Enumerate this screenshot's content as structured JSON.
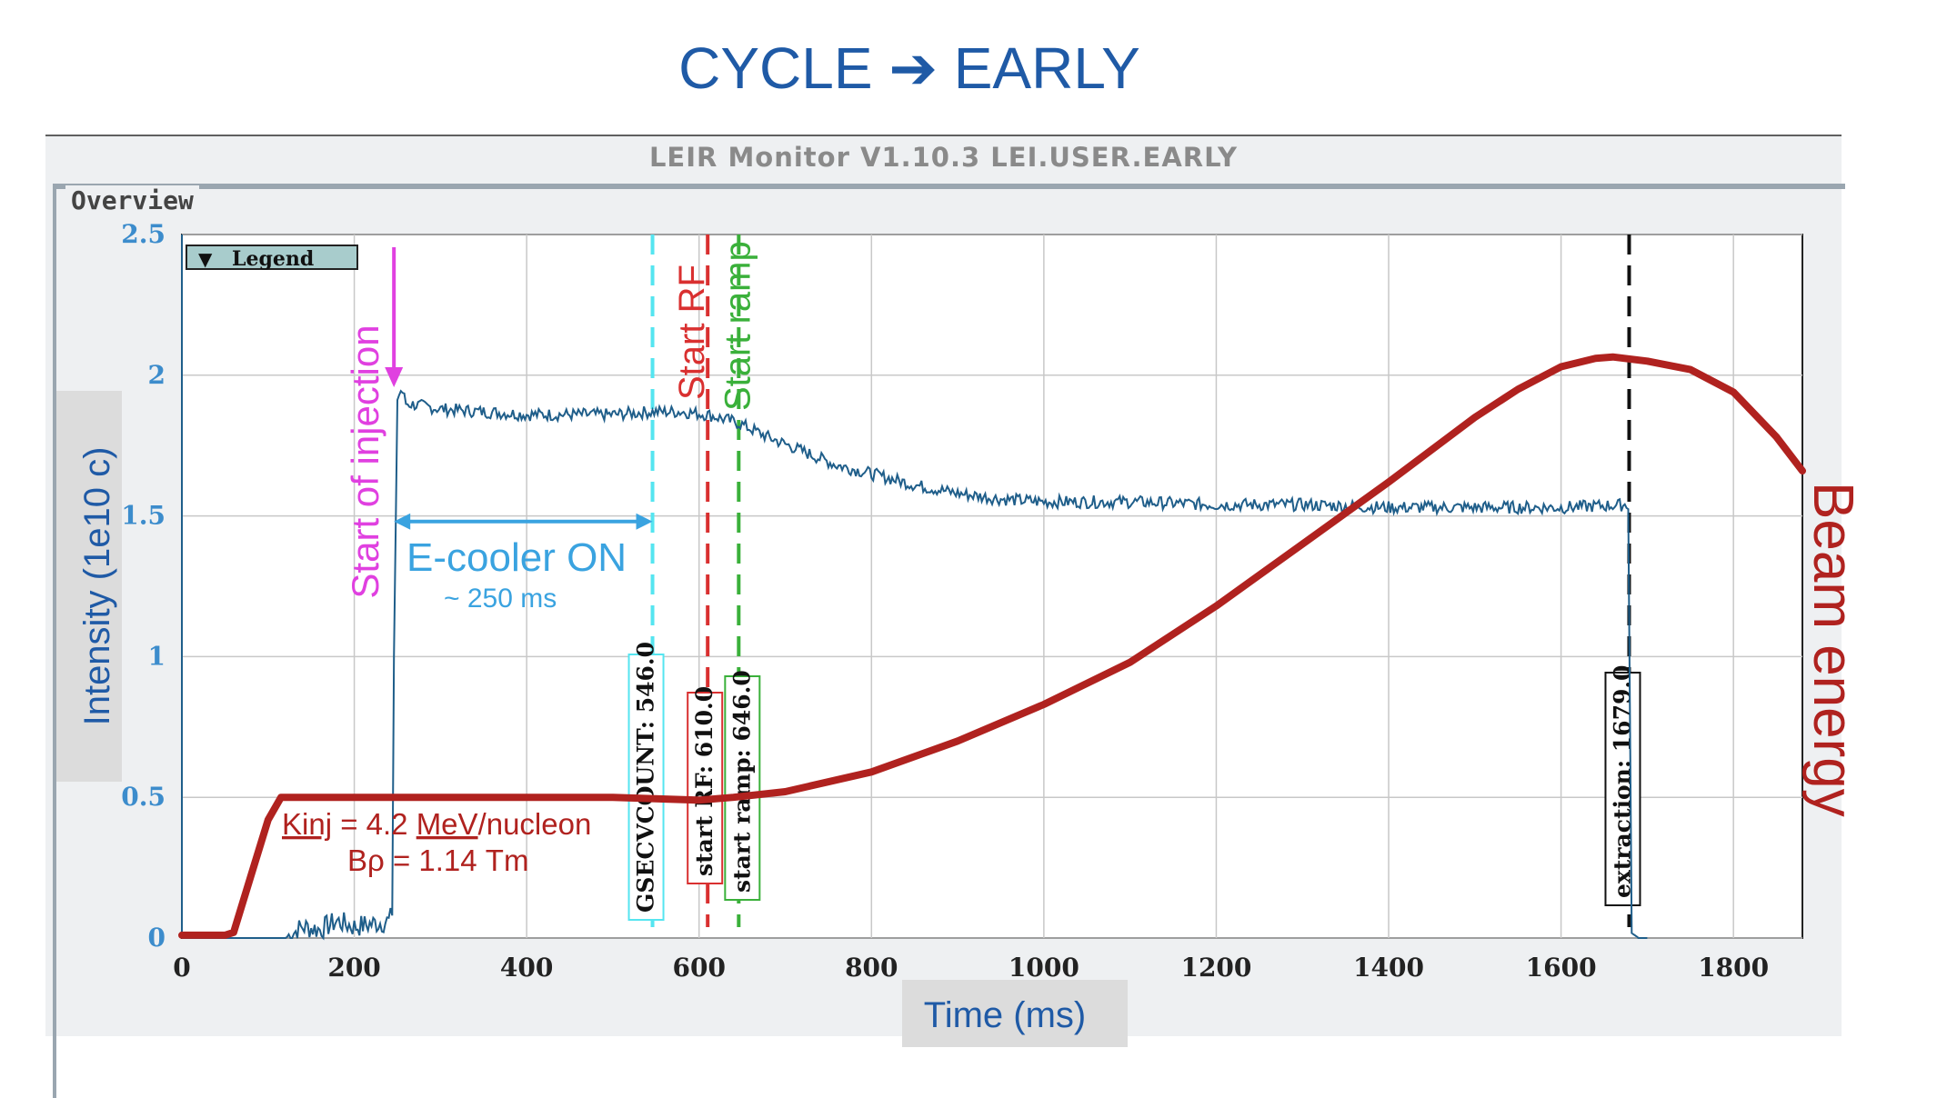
{
  "slide_title": "CYCLE ➔ EARLY",
  "window": {
    "title": "LEIR Monitor V1.10.3    LEI.USER.EARLY",
    "panel_label": "Overview",
    "legend_button": "Legend"
  },
  "colors": {
    "intensity": "#1f5e8a",
    "beam_energy": "#b0221f",
    "injection": "#e040e0",
    "ecooler": "#3aa3e0",
    "gsecvcount": "#55e5f0",
    "start_rf": "#d93030",
    "start_ramp": "#3ab03a",
    "extraction": "#111111",
    "grid": "#c8c8c8"
  },
  "chart_data": {
    "type": "line",
    "xlabel": "Time (ms)",
    "ylabel": "Intensity (1e10 c)",
    "xlim": [
      0,
      1880
    ],
    "ylim": [
      0,
      2.5
    ],
    "xticks": [
      0,
      200,
      400,
      600,
      800,
      1000,
      1200,
      1400,
      1600,
      1800
    ],
    "yticks": [
      0,
      0.5,
      1,
      1.5,
      2,
      2.5
    ],
    "ytick_labels": [
      "0",
      "0.5",
      "1",
      "1.5",
      "2",
      "2.5"
    ],
    "grid": true,
    "series": [
      {
        "key": "intensity",
        "x": [
          0,
          120,
          140,
          160,
          180,
          200,
          220,
          240,
          244,
          246,
          248,
          250,
          255,
          260,
          280,
          300,
          350,
          400,
          450,
          500,
          546,
          580,
          610,
          646,
          680,
          720,
          760,
          800,
          850,
          900,
          950,
          1000,
          1100,
          1200,
          1300,
          1400,
          1500,
          1600,
          1679,
          1681,
          1690,
          1700
        ],
        "y": [
          0,
          0,
          0.04,
          0.03,
          0.06,
          0.04,
          0.05,
          0.06,
          0.08,
          1.0,
          1.45,
          1.92,
          1.95,
          1.9,
          1.89,
          1.88,
          1.87,
          1.86,
          1.86,
          1.86,
          1.87,
          1.87,
          1.86,
          1.83,
          1.78,
          1.73,
          1.68,
          1.65,
          1.61,
          1.58,
          1.56,
          1.55,
          1.55,
          1.54,
          1.54,
          1.53,
          1.53,
          1.53,
          1.54,
          0.02,
          0.0,
          0.0
        ]
      },
      {
        "key": "beam_energy",
        "name": "Beam energy",
        "x": [
          0,
          50,
          60,
          80,
          100,
          115,
          130,
          200,
          300,
          400,
          500,
          600,
          640,
          700,
          800,
          900,
          1000,
          1100,
          1200,
          1300,
          1400,
          1500,
          1550,
          1600,
          1640,
          1660,
          1700,
          1750,
          1800,
          1850,
          1880
        ],
        "y": [
          0.01,
          0.01,
          0.02,
          0.22,
          0.42,
          0.5,
          0.5,
          0.5,
          0.5,
          0.5,
          0.5,
          0.49,
          0.5,
          0.52,
          0.59,
          0.7,
          0.83,
          0.98,
          1.18,
          1.4,
          1.62,
          1.85,
          1.95,
          2.03,
          2.06,
          2.065,
          2.05,
          2.02,
          1.94,
          1.78,
          1.66
        ]
      }
    ],
    "markers": [
      {
        "key": "gsecvcount",
        "x": 546,
        "box_label": "GSECVCOUNT: 546.0",
        "line_label": ""
      },
      {
        "key": "start_rf",
        "x": 610,
        "box_label": "start RF: 610.0",
        "line_label": "Start RF"
      },
      {
        "key": "start_ramp",
        "x": 646,
        "box_label": "start ramp: 646.0",
        "line_label": "Start ramp"
      },
      {
        "key": "extraction",
        "x": 1679,
        "box_label": "extraction: 1679.0",
        "line_label": ""
      }
    ],
    "annotations": {
      "injection": {
        "label": "Start of injection",
        "x": 246
      },
      "ecooler": {
        "label": "E-cooler ON",
        "sublabel": "~ 250 ms",
        "x_from": 246,
        "x_to": 546,
        "y": 1.48
      },
      "kinj": {
        "prefix": "Kinj",
        "equals": " = 4.2 ",
        "unit": "MeV",
        "suffix": "/nucleon"
      },
      "brho": "Bρ = 1.14 Tm"
    }
  }
}
